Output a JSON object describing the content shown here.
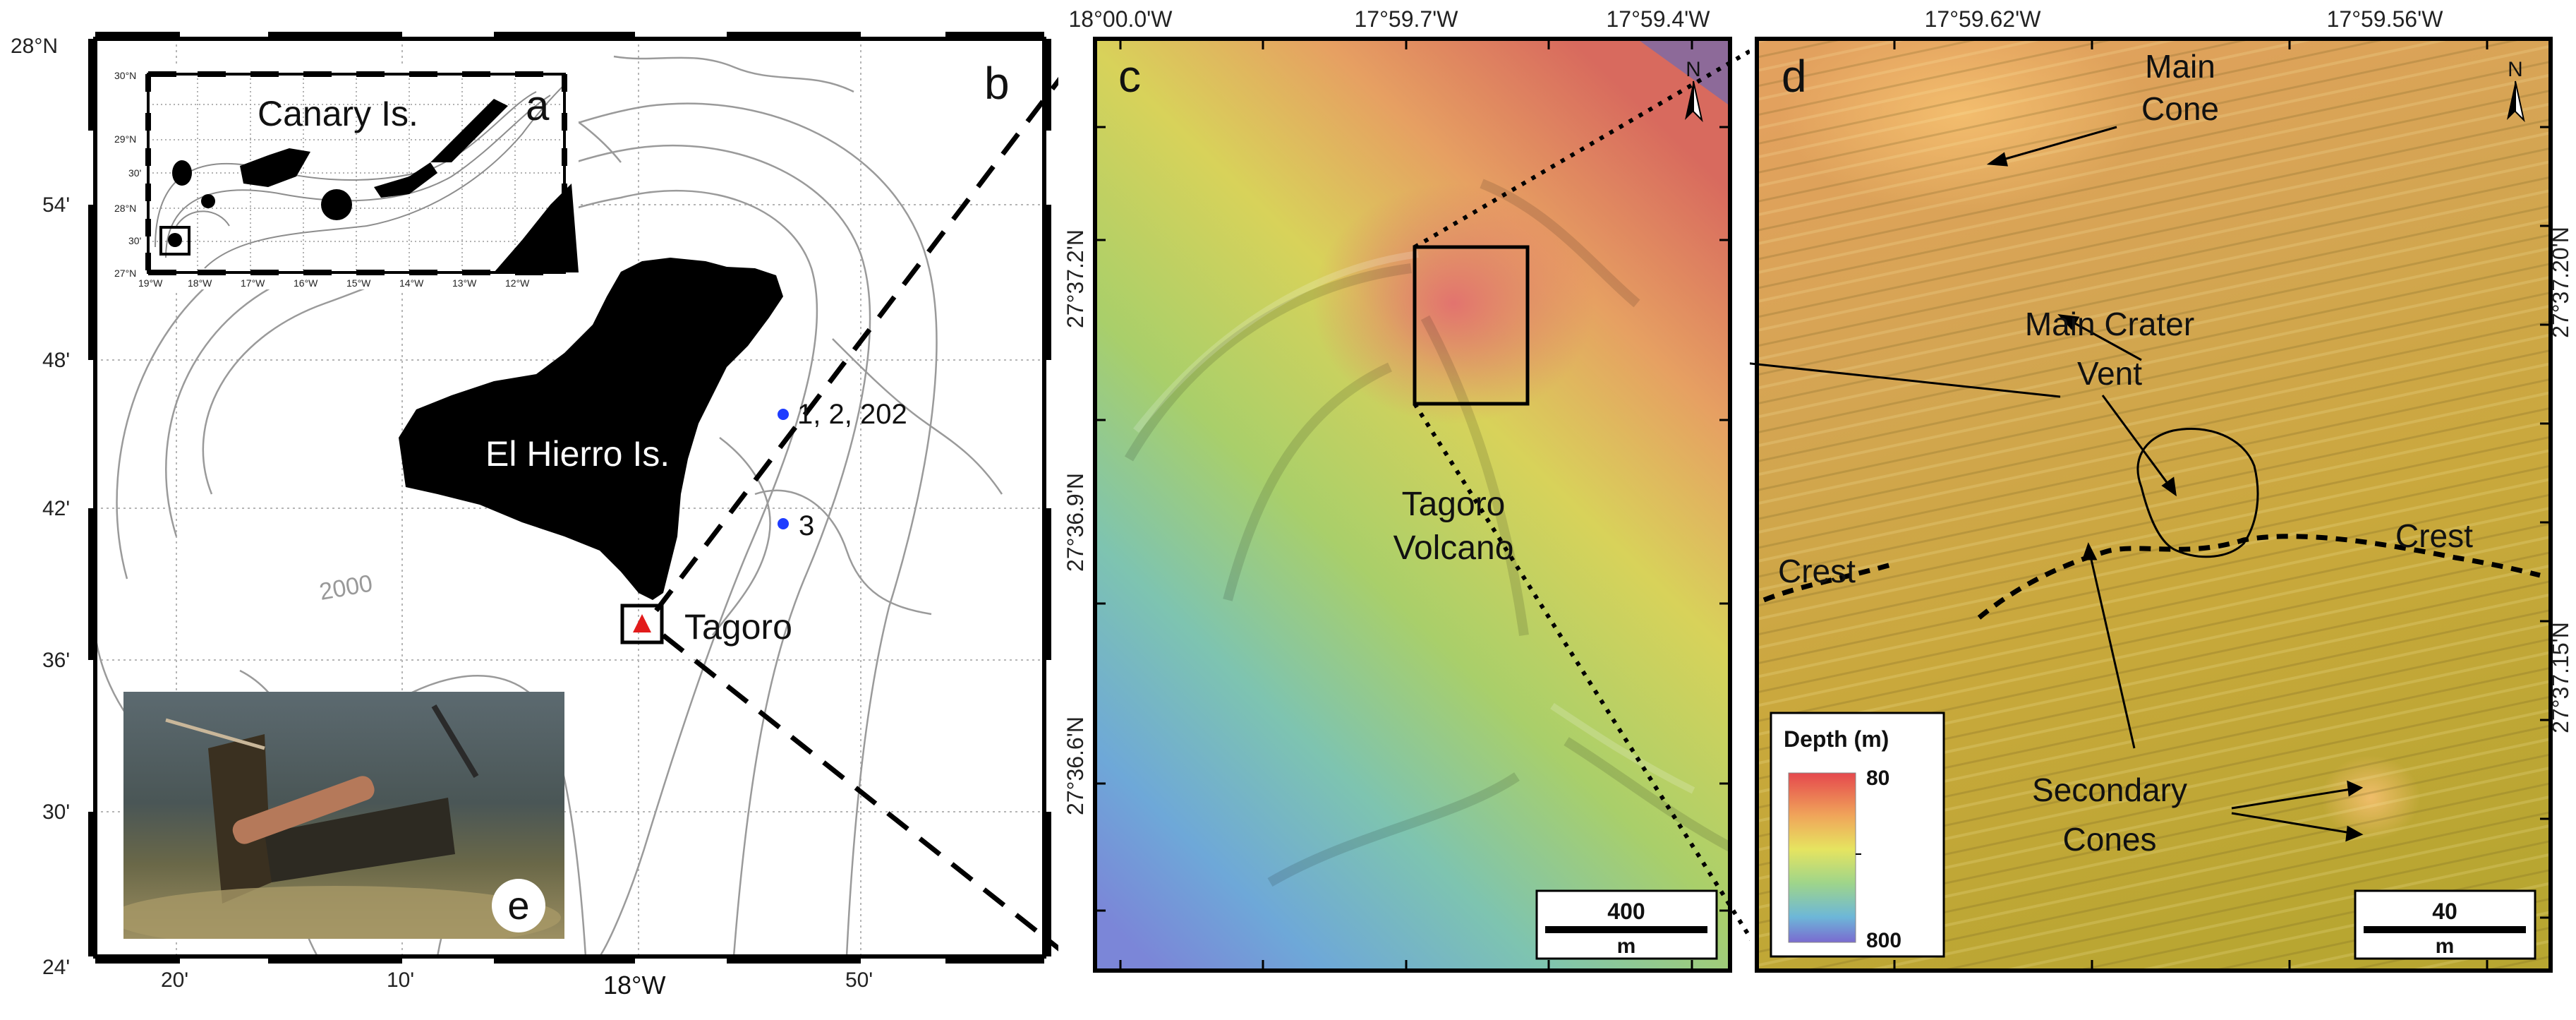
{
  "panel_b": {
    "letter": "b",
    "island_label": "El Hierro Is.",
    "volcano_label": "Tagoro",
    "contour_label": "2000",
    "stations": [
      {
        "label": "1, 2, 202"
      },
      {
        "label": "3"
      }
    ],
    "lat_ticks": [
      "28°N",
      "54'",
      "48'",
      "42'",
      "36'",
      "30'",
      "24'"
    ],
    "lon_ticks": [
      "20'",
      "10'",
      "18°W",
      "50'"
    ],
    "colors": {
      "land": "#000000",
      "contour": "#9a9a9a",
      "station": "#1e3cff",
      "volcano": "#e21b1b"
    }
  },
  "panel_a": {
    "letter": "a",
    "title": "Canary Is.",
    "lat_ticks": [
      "30°N",
      "29°N",
      "30'",
      "28°N",
      "30'",
      "27°N"
    ],
    "lon_ticks": [
      "19°W",
      "18°W",
      "17°W",
      "16°W",
      "15°W",
      "14°W",
      "13°W",
      "12°W"
    ]
  },
  "panel_e": {
    "letter": "e"
  },
  "panel_c": {
    "letter": "c",
    "volcano_label": [
      "Tagoro",
      "Volcano"
    ],
    "lon_ticks": [
      "18°00.0'W",
      "17°59.7'W",
      "17°59.4'W"
    ],
    "lat_ticks": [
      "27°37.2'N",
      "27°36.9'N",
      "27°36.6'N"
    ],
    "scale_value": "400",
    "scale_unit": "m",
    "north": "N"
  },
  "panel_d": {
    "letter": "d",
    "lon_ticks": [
      "17°59.62'W",
      "17°59.56'W"
    ],
    "lat_ticks": [
      "27°37.20'N",
      "27°37.15'N"
    ],
    "labels": {
      "main_cone": [
        "Main",
        "Cone"
      ],
      "main_crater": [
        "Main Crater",
        "Vent"
      ],
      "crest_left": "Crest",
      "crest_right": "Crest",
      "secondary": [
        "Secondary",
        "Cones"
      ]
    },
    "legend": {
      "title": "Depth (m)",
      "min": "80",
      "max": "800"
    },
    "scale_value": "40",
    "scale_unit": "m",
    "north": "N"
  }
}
